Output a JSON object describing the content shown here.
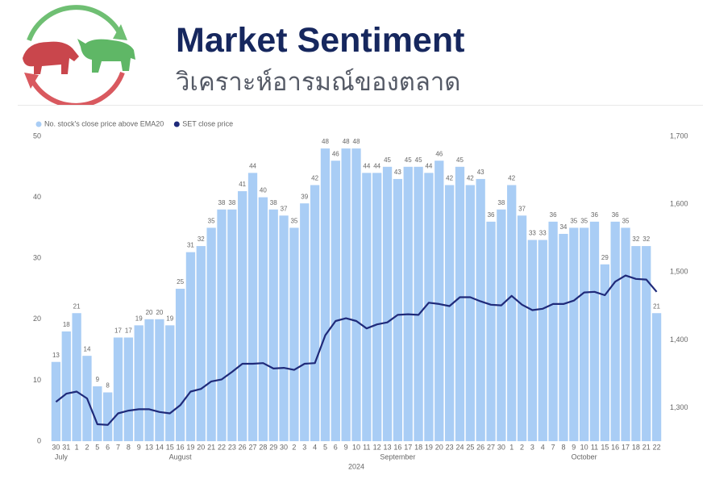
{
  "header": {
    "title": "Market Sentiment",
    "subtitle": "วิเคราะห์อารมณ์ของตลาด"
  },
  "chart_data": {
    "type": "bar",
    "categories": [
      "30",
      "31",
      "1",
      "2",
      "5",
      "6",
      "7",
      "8",
      "9",
      "13",
      "14",
      "15",
      "16",
      "19",
      "20",
      "21",
      "22",
      "23",
      "26",
      "27",
      "28",
      "29",
      "30",
      "2",
      "3",
      "4",
      "5",
      "6",
      "9",
      "10",
      "11",
      "12",
      "13",
      "16",
      "17",
      "18",
      "19",
      "20",
      "23",
      "24",
      "25",
      "26",
      "27",
      "30",
      "1",
      "2",
      "3",
      "4",
      "7",
      "8",
      "9",
      "10",
      "11",
      "15",
      "16",
      "17",
      "18",
      "21",
      "22"
    ],
    "months": [
      "July",
      "August",
      "September",
      "October"
    ],
    "year": "2024",
    "series": [
      {
        "name": "No. stock's close price above EMA20",
        "type": "bar",
        "color": "#a9cdf5",
        "values": [
          13,
          18,
          21,
          14,
          9,
          8,
          17,
          17,
          19,
          20,
          20,
          19,
          25,
          31,
          32,
          35,
          38,
          38,
          41,
          44,
          40,
          38,
          37,
          35,
          39,
          42,
          48,
          46,
          48,
          48,
          44,
          44,
          45,
          43,
          45,
          45,
          44,
          46,
          42,
          45,
          42,
          43,
          36,
          38,
          42,
          37,
          33,
          33,
          36,
          34,
          35,
          35,
          36,
          29,
          36,
          35,
          32,
          32,
          21
        ]
      },
      {
        "name": "SET close price",
        "type": "line",
        "axis": "y2",
        "color": "#1f2a7a",
        "values": [
          1309,
          1321,
          1324,
          1314,
          1276,
          1275,
          1292,
          1296,
          1298,
          1298,
          1294,
          1292,
          1304,
          1324,
          1328,
          1339,
          1342,
          1353,
          1365,
          1365,
          1366,
          1358,
          1359,
          1356,
          1365,
          1366,
          1407,
          1428,
          1432,
          1428,
          1417,
          1423,
          1426,
          1437,
          1438,
          1437,
          1455,
          1453,
          1450,
          1463,
          1463,
          1457,
          1452,
          1451,
          1465,
          1452,
          1444,
          1446,
          1453,
          1453,
          1458,
          1470,
          1471,
          1466,
          1486,
          1495,
          1490,
          1489,
          1471
        ]
      }
    ],
    "ylim": [
      0,
      50
    ],
    "yticks": [
      0,
      10,
      20,
      30,
      40,
      50
    ],
    "y2lim": [
      1251,
      1700
    ],
    "y2ticks": [
      {
        "value": 1300,
        "label": "1,300"
      },
      {
        "value": 1400,
        "label": "1,400"
      },
      {
        "value": 1500,
        "label": "1,500"
      },
      {
        "value": 1600,
        "label": "1,600"
      },
      {
        "value": 1700,
        "label": "1,700"
      }
    ],
    "legend": "top-left"
  }
}
